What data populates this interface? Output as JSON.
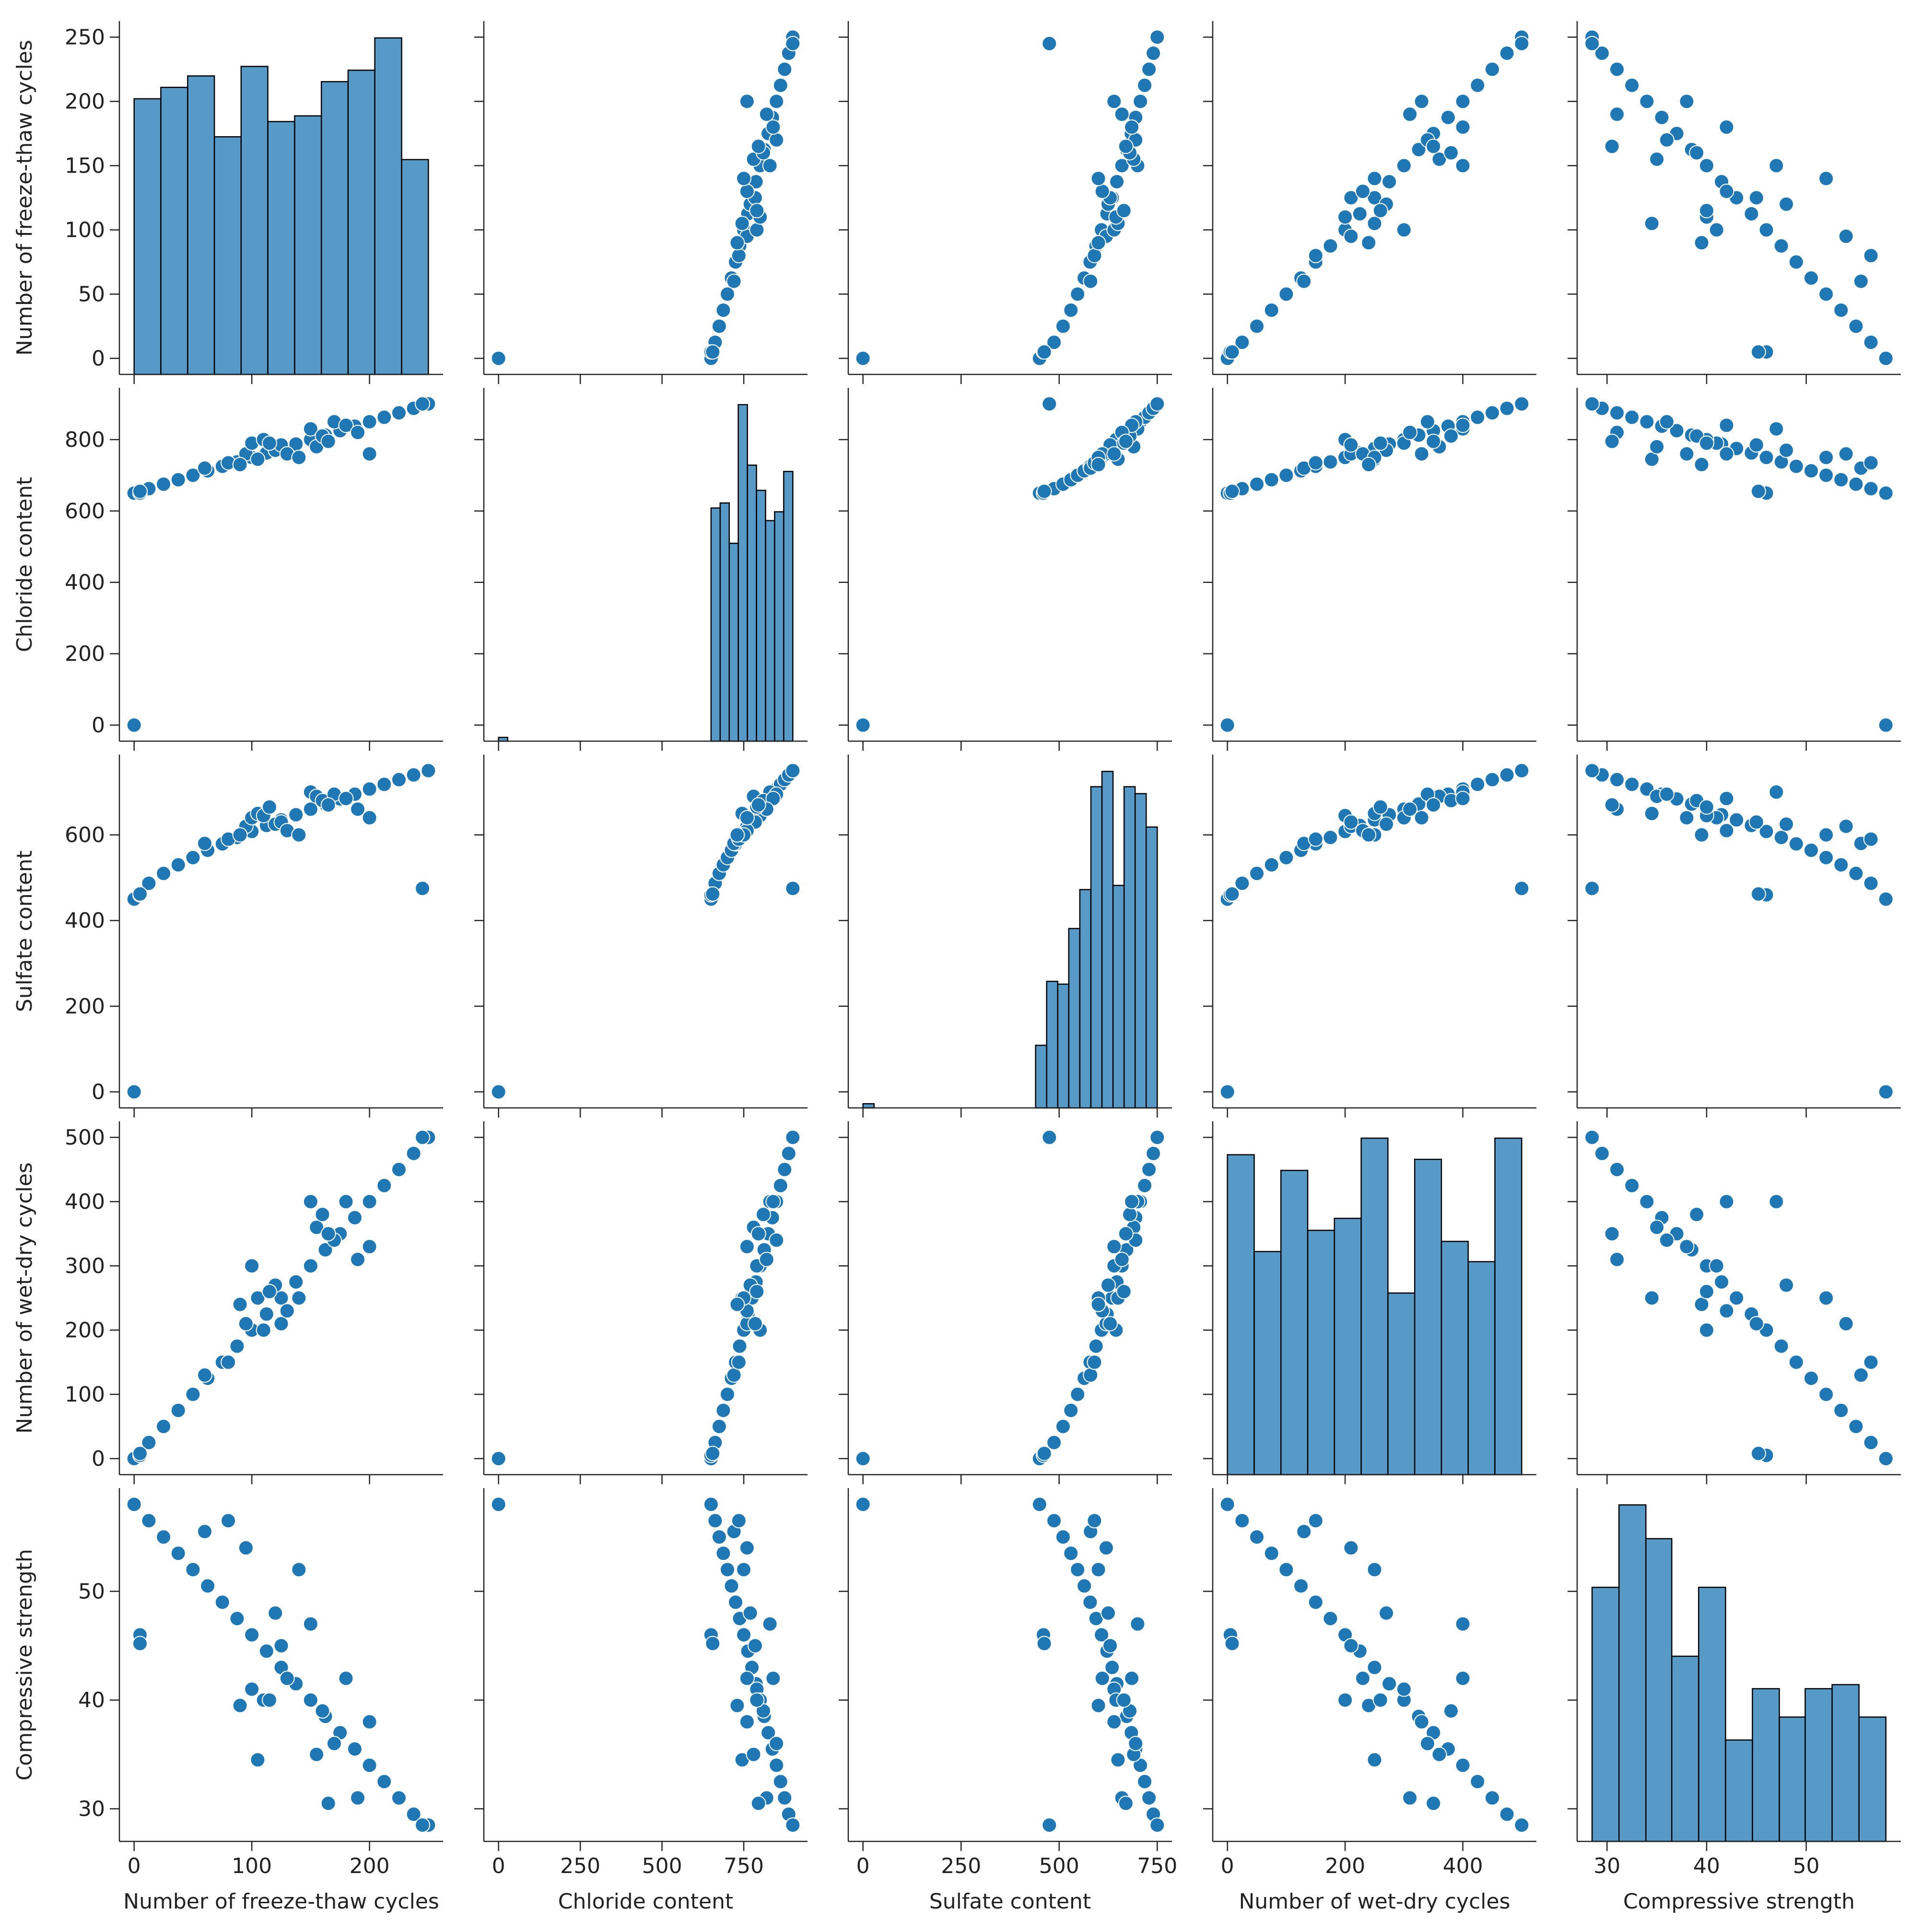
{
  "chart_data": {
    "type": "pairplot",
    "color": "#1f77b4",
    "variables": [
      {
        "name": "Number of freeze-thaw cycles",
        "lim": [
          -12.5,
          262.5
        ],
        "xticks": [
          0,
          100,
          200
        ],
        "yticks": [
          0,
          50,
          100,
          150,
          200,
          250
        ],
        "hist": {
          "bins": [
            0,
            22.7,
            45.5,
            68.2,
            90.9,
            113.6,
            136.4,
            159.1,
            181.8,
            204.5,
            227.3,
            250
          ],
          "counts": [
            145,
            151,
            157,
            125,
            162,
            133,
            136,
            154,
            160,
            177,
            113
          ]
        }
      },
      {
        "name": "Chloride content",
        "lim": [
          -45,
          945
        ],
        "xticks": [
          0,
          250,
          500,
          750
        ],
        "yticks": [
          0,
          200,
          400,
          600,
          800
        ],
        "hist": {
          "bins": [
            0,
            27.8,
            650,
            677.8,
            705.6,
            733.3,
            761.1,
            788.9,
            816.7,
            844.4,
            872.2,
            900
          ],
          "counts": [
            3,
            0,
            185,
            189,
            157,
            267,
            219,
            199,
            175,
            182,
            214
          ]
        }
      },
      {
        "name": "Sulfate content",
        "lim": [
          -37.5,
          787.5
        ],
        "xticks": [
          0,
          250,
          500,
          750
        ],
        "yticks": [
          0,
          200,
          400,
          600
        ],
        "hist": {
          "bins": [
            0,
            28.2,
            440,
            468.2,
            496.4,
            524.5,
            552.7,
            580.9,
            609.1,
            637.3,
            665.5,
            693.6,
            721.8,
            750
          ],
          "counts": [
            3,
            0,
            45,
            91,
            89,
            129,
            157,
            231,
            242,
            160,
            231,
            226,
            202
          ]
        }
      },
      {
        "name": "Number of wet-dry cycles",
        "lim": [
          -25,
          525
        ],
        "xticks": [
          0,
          200,
          400
        ],
        "yticks": [
          0,
          100,
          200,
          300,
          400,
          500
        ],
        "hist": {
          "bins": [
            0,
            45.5,
            90.9,
            136.4,
            181.8,
            227.3,
            272.7,
            318.2,
            363.6,
            409.1,
            454.5,
            500
          ],
          "counts": [
            347,
            242,
            330,
            265,
            278,
            365,
            197,
            342,
            253,
            231,
            365
          ]
        }
      },
      {
        "name": "Compressive strength",
        "lim": [
          27,
          59.5
        ],
        "xticks": [
          30,
          40,
          50
        ],
        "yticks": [
          30,
          40,
          50
        ],
        "hist": {
          "bins": [
            28.5,
            31.2,
            33.9,
            36.5,
            39.2,
            41.9,
            44.6,
            47.3,
            49.9,
            52.6,
            55.3,
            58
          ],
          "counts": [
            188,
            249,
            224,
            137,
            188,
            75,
            113,
            92,
            113,
            116,
            92
          ]
        }
      }
    ],
    "rows": [
      [
        0,
        650,
        450,
        0,
        58
      ],
      [
        12.5,
        662.5,
        487,
        25,
        56.5
      ],
      [
        25,
        675,
        510,
        50,
        55
      ],
      [
        37.5,
        687.5,
        530,
        75,
        53.5
      ],
      [
        50,
        700,
        547,
        100,
        52
      ],
      [
        62.5,
        712.5,
        564,
        125,
        50.5
      ],
      [
        75,
        725,
        579,
        150,
        49
      ],
      [
        87.5,
        737.5,
        594,
        175,
        47.5
      ],
      [
        100,
        750,
        608,
        200,
        46
      ],
      [
        112.5,
        762.5,
        622,
        225,
        44.5
      ],
      [
        125,
        775,
        635,
        250,
        43
      ],
      [
        137.5,
        787.5,
        647,
        275,
        41.5
      ],
      [
        150,
        800,
        660,
        300,
        40
      ],
      [
        162.5,
        812.5,
        672,
        325,
        38.5
      ],
      [
        175,
        825,
        684,
        350,
        37
      ],
      [
        187.5,
        837.5,
        695,
        375,
        35.5
      ],
      [
        200,
        850,
        707,
        400,
        34
      ],
      [
        212.5,
        862.5,
        718,
        425,
        32.5
      ],
      [
        225,
        875,
        729,
        450,
        31
      ],
      [
        237.5,
        887.5,
        740,
        475,
        29.5
      ],
      [
        250,
        900,
        750,
        500,
        28.5
      ],
      [
        0,
        0,
        0,
        0,
        58
      ],
      [
        245,
        900,
        475,
        500,
        28.5
      ],
      [
        5,
        650,
        460,
        5,
        46
      ],
      [
        5,
        655,
        462,
        8,
        45.2
      ],
      [
        60,
        720,
        580,
        130,
        55.5
      ],
      [
        80,
        735,
        590,
        150,
        56.5
      ],
      [
        95,
        760,
        620,
        210,
        54
      ],
      [
        100,
        790,
        640,
        300,
        41
      ],
      [
        105,
        745,
        650,
        250,
        34.5
      ],
      [
        110,
        800,
        645,
        200,
        40
      ],
      [
        120,
        770,
        625,
        270,
        48
      ],
      [
        125,
        785,
        630,
        210,
        45
      ],
      [
        130,
        760,
        610,
        230,
        42
      ],
      [
        150,
        830,
        700,
        400,
        47
      ],
      [
        155,
        780,
        690,
        360,
        35
      ],
      [
        160,
        810,
        680,
        380,
        39
      ],
      [
        170,
        850,
        695,
        340,
        36
      ],
      [
        180,
        840,
        685,
        400,
        42
      ],
      [
        190,
        820,
        660,
        310,
        31
      ],
      [
        200,
        760,
        640,
        330,
        38
      ],
      [
        140,
        750,
        600,
        250,
        52
      ],
      [
        90,
        730,
        600,
        240,
        39.5
      ],
      [
        115,
        790,
        665,
        260,
        40
      ],
      [
        165,
        795,
        670,
        350,
        30.5
      ]
    ]
  }
}
